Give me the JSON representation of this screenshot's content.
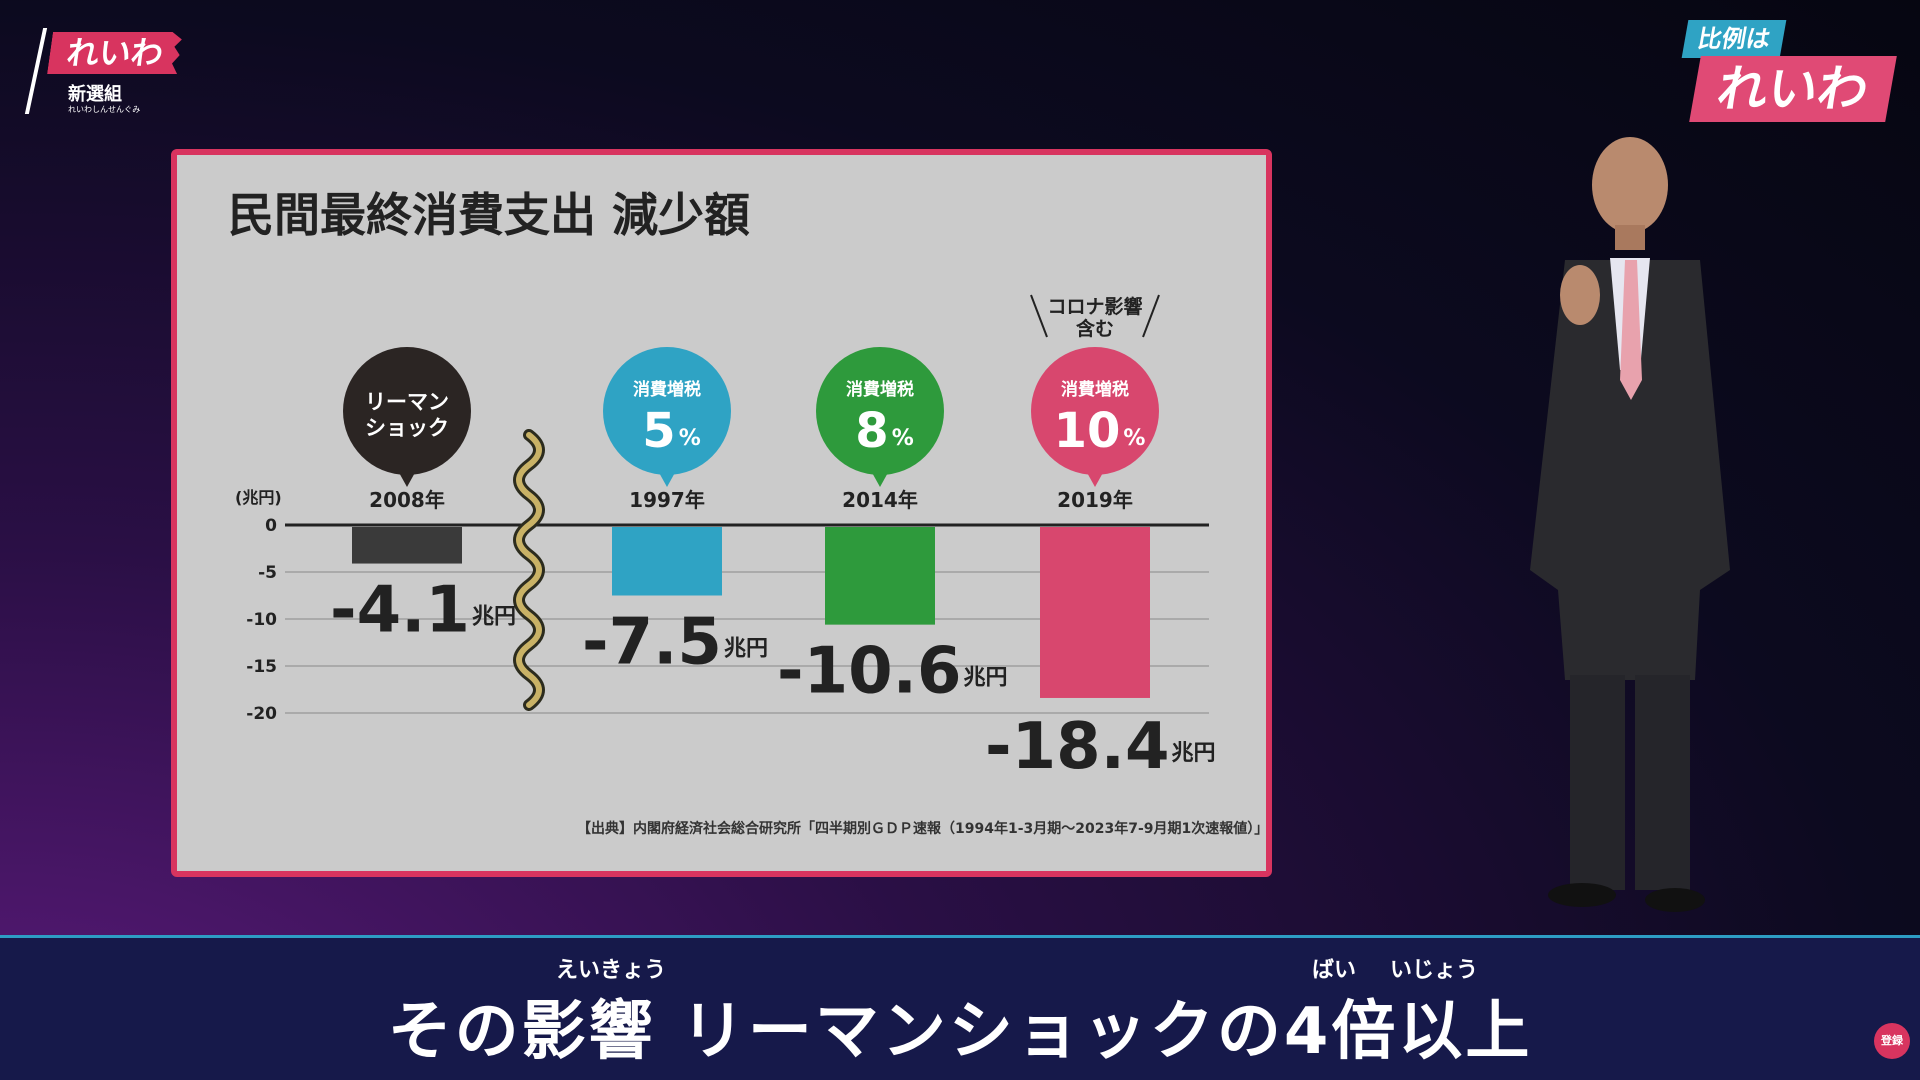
{
  "logo": {
    "mark": "れいわ",
    "sub": "新選組",
    "tiny": "れいわしんせんぐみ"
  },
  "badge": {
    "top": "比例は",
    "main": "れいわ"
  },
  "chart_data": {
    "type": "bar",
    "title": "民間最終消費支出 減少額",
    "unit_label": "(兆円)",
    "yticks": [
      "0",
      "-5",
      "-10",
      "-15",
      "-20"
    ],
    "ylim": [
      -20,
      0
    ],
    "categories": [
      "2008年",
      "1997年",
      "2014年",
      "2019年"
    ],
    "values": [
      -4.1,
      -7.5,
      -10.6,
      -18.4
    ],
    "value_labels": [
      "-4.1",
      "-7.5",
      "-10.6",
      "-18.4"
    ],
    "value_unit": "兆円",
    "bar_colors": [
      "#3a3a3a",
      "#2fa3c4",
      "#2e9a3c",
      "#d8476e"
    ],
    "bubbles": [
      {
        "line1": "リーマン",
        "line2": "ショック",
        "big": "",
        "pct": ""
      },
      {
        "line1": "消費増税",
        "line2": "",
        "big": "5",
        "pct": "%"
      },
      {
        "line1": "消費増税",
        "line2": "",
        "big": "8",
        "pct": "%"
      },
      {
        "line1": "消費増税",
        "line2": "",
        "big": "10",
        "pct": "%"
      }
    ],
    "annotation": [
      "コロナ影響",
      "含む"
    ],
    "source": "【出典】内閣府経済社会総合研究所「四半期別ＧＤＰ速報（1994年1-3月期〜2023年7-9月期1次速報値）」"
  },
  "subtitle": {
    "text": "その影響 リーマンショックの4倍以上",
    "ruby": [
      "えいきょう",
      "ばい",
      "いじょう"
    ]
  },
  "subscribe": "登録"
}
